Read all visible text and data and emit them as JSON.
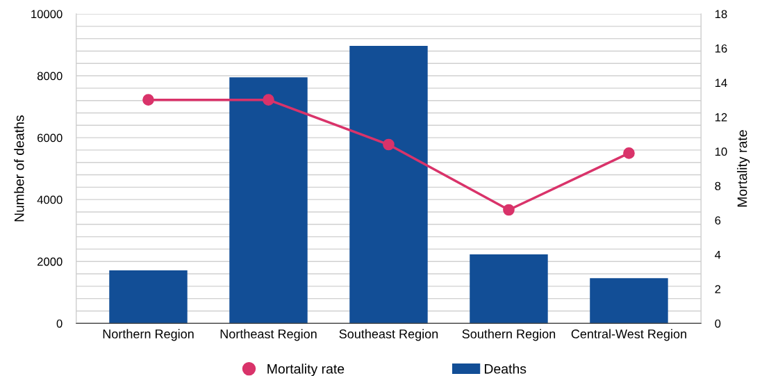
{
  "chart_data": {
    "type": "bar",
    "ylabel": "Number of deaths",
    "y2label": "Mortality rate",
    "categories": [
      "Northern Region",
      "Northeast Region",
      "Southeast Region",
      "Southern Region",
      "Central-West Region"
    ],
    "series": [
      {
        "name": "Deaths",
        "color": "#124e96",
        "values": [
          1710,
          7950,
          8970,
          2230,
          1460
        ]
      },
      {
        "name": "Mortality rate",
        "type": "line",
        "axis": "y2",
        "color": "#d9336a",
        "marker": "circle",
        "values": [
          13.0,
          13.0,
          10.4,
          6.6,
          9.9
        ]
      }
    ],
    "ylim": [
      0,
      10000
    ],
    "yticks": [
      0,
      {
        "value": 400,
        "label": null
      },
      {
        "value": 800,
        "label": null
      },
      {
        "value": 1200,
        "label": null
      },
      {
        "value": 1600,
        "label": null
      },
      2000,
      {
        "value": 2400,
        "label": null
      },
      {
        "value": 2800,
        "label": null
      },
      {
        "value": 3200,
        "label": null
      },
      {
        "value": 3600,
        "label": null
      },
      4000,
      {
        "value": 4400,
        "label": null
      },
      {
        "value": 4800,
        "label": null
      },
      {
        "value": 5200,
        "label": null
      },
      {
        "value": 5600,
        "label": null
      },
      6000,
      {
        "value": 6400,
        "label": null
      },
      {
        "value": 6800,
        "label": null
      },
      {
        "value": 7200,
        "label": null
      },
      {
        "value": 7600,
        "label": null
      },
      8000,
      {
        "value": 8400,
        "label": null
      },
      {
        "value": 8800,
        "label": null
      },
      {
        "value": 9200,
        "label": null
      },
      {
        "value": 9600,
        "label": null
      },
      10000
    ],
    "y2lim": [
      0,
      18
    ],
    "y2ticks": [
      0,
      2,
      4,
      6,
      8,
      10,
      12,
      14,
      16,
      18
    ],
    "grid": "y",
    "legend": "bottom"
  }
}
